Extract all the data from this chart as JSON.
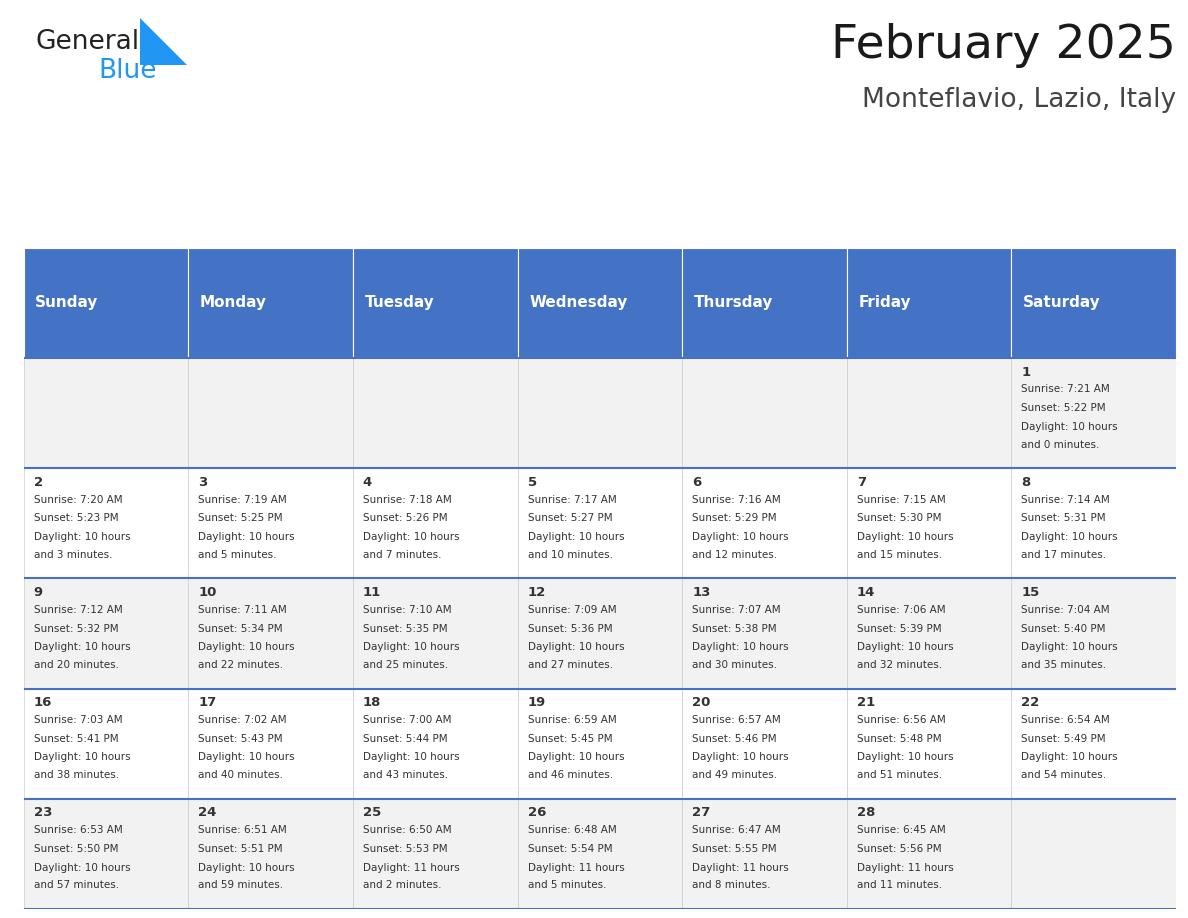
{
  "title": "February 2025",
  "subtitle": "Monteflavio, Lazio, Italy",
  "header_bg": "#4472C4",
  "header_text_color": "#FFFFFF",
  "row_bg": [
    "#F2F2F2",
    "#FFFFFF"
  ],
  "separator_color": "#4472C4",
  "cell_text_color": "#333333",
  "day_headers": [
    "Sunday",
    "Monday",
    "Tuesday",
    "Wednesday",
    "Thursday",
    "Friday",
    "Saturday"
  ],
  "days": [
    {
      "day": 1,
      "col": 6,
      "row": 0,
      "sunrise": "7:21 AM",
      "sunset": "5:22 PM",
      "daylight": "10 hours and 0 minutes."
    },
    {
      "day": 2,
      "col": 0,
      "row": 1,
      "sunrise": "7:20 AM",
      "sunset": "5:23 PM",
      "daylight": "10 hours and 3 minutes."
    },
    {
      "day": 3,
      "col": 1,
      "row": 1,
      "sunrise": "7:19 AM",
      "sunset": "5:25 PM",
      "daylight": "10 hours and 5 minutes."
    },
    {
      "day": 4,
      "col": 2,
      "row": 1,
      "sunrise": "7:18 AM",
      "sunset": "5:26 PM",
      "daylight": "10 hours and 7 minutes."
    },
    {
      "day": 5,
      "col": 3,
      "row": 1,
      "sunrise": "7:17 AM",
      "sunset": "5:27 PM",
      "daylight": "10 hours and 10 minutes."
    },
    {
      "day": 6,
      "col": 4,
      "row": 1,
      "sunrise": "7:16 AM",
      "sunset": "5:29 PM",
      "daylight": "10 hours and 12 minutes."
    },
    {
      "day": 7,
      "col": 5,
      "row": 1,
      "sunrise": "7:15 AM",
      "sunset": "5:30 PM",
      "daylight": "10 hours and 15 minutes."
    },
    {
      "day": 8,
      "col": 6,
      "row": 1,
      "sunrise": "7:14 AM",
      "sunset": "5:31 PM",
      "daylight": "10 hours and 17 minutes."
    },
    {
      "day": 9,
      "col": 0,
      "row": 2,
      "sunrise": "7:12 AM",
      "sunset": "5:32 PM",
      "daylight": "10 hours and 20 minutes."
    },
    {
      "day": 10,
      "col": 1,
      "row": 2,
      "sunrise": "7:11 AM",
      "sunset": "5:34 PM",
      "daylight": "10 hours and 22 minutes."
    },
    {
      "day": 11,
      "col": 2,
      "row": 2,
      "sunrise": "7:10 AM",
      "sunset": "5:35 PM",
      "daylight": "10 hours and 25 minutes."
    },
    {
      "day": 12,
      "col": 3,
      "row": 2,
      "sunrise": "7:09 AM",
      "sunset": "5:36 PM",
      "daylight": "10 hours and 27 minutes."
    },
    {
      "day": 13,
      "col": 4,
      "row": 2,
      "sunrise": "7:07 AM",
      "sunset": "5:38 PM",
      "daylight": "10 hours and 30 minutes."
    },
    {
      "day": 14,
      "col": 5,
      "row": 2,
      "sunrise": "7:06 AM",
      "sunset": "5:39 PM",
      "daylight": "10 hours and 32 minutes."
    },
    {
      "day": 15,
      "col": 6,
      "row": 2,
      "sunrise": "7:04 AM",
      "sunset": "5:40 PM",
      "daylight": "10 hours and 35 minutes."
    },
    {
      "day": 16,
      "col": 0,
      "row": 3,
      "sunrise": "7:03 AM",
      "sunset": "5:41 PM",
      "daylight": "10 hours and 38 minutes."
    },
    {
      "day": 17,
      "col": 1,
      "row": 3,
      "sunrise": "7:02 AM",
      "sunset": "5:43 PM",
      "daylight": "10 hours and 40 minutes."
    },
    {
      "day": 18,
      "col": 2,
      "row": 3,
      "sunrise": "7:00 AM",
      "sunset": "5:44 PM",
      "daylight": "10 hours and 43 minutes."
    },
    {
      "day": 19,
      "col": 3,
      "row": 3,
      "sunrise": "6:59 AM",
      "sunset": "5:45 PM",
      "daylight": "10 hours and 46 minutes."
    },
    {
      "day": 20,
      "col": 4,
      "row": 3,
      "sunrise": "6:57 AM",
      "sunset": "5:46 PM",
      "daylight": "10 hours and 49 minutes."
    },
    {
      "day": 21,
      "col": 5,
      "row": 3,
      "sunrise": "6:56 AM",
      "sunset": "5:48 PM",
      "daylight": "10 hours and 51 minutes."
    },
    {
      "day": 22,
      "col": 6,
      "row": 3,
      "sunrise": "6:54 AM",
      "sunset": "5:49 PM",
      "daylight": "10 hours and 54 minutes."
    },
    {
      "day": 23,
      "col": 0,
      "row": 4,
      "sunrise": "6:53 AM",
      "sunset": "5:50 PM",
      "daylight": "10 hours and 57 minutes."
    },
    {
      "day": 24,
      "col": 1,
      "row": 4,
      "sunrise": "6:51 AM",
      "sunset": "5:51 PM",
      "daylight": "10 hours and 59 minutes."
    },
    {
      "day": 25,
      "col": 2,
      "row": 4,
      "sunrise": "6:50 AM",
      "sunset": "5:53 PM",
      "daylight": "11 hours and 2 minutes."
    },
    {
      "day": 26,
      "col": 3,
      "row": 4,
      "sunrise": "6:48 AM",
      "sunset": "5:54 PM",
      "daylight": "11 hours and 5 minutes."
    },
    {
      "day": 27,
      "col": 4,
      "row": 4,
      "sunrise": "6:47 AM",
      "sunset": "5:55 PM",
      "daylight": "11 hours and 8 minutes."
    },
    {
      "day": 28,
      "col": 5,
      "row": 4,
      "sunrise": "6:45 AM",
      "sunset": "5:56 PM",
      "daylight": "11 hours and 11 minutes."
    }
  ],
  "num_rows": 5,
  "num_cols": 7,
  "logo_general_color": "#222222",
  "logo_blue_color": "#2196F3",
  "logo_triangle_color": "#2196F3"
}
